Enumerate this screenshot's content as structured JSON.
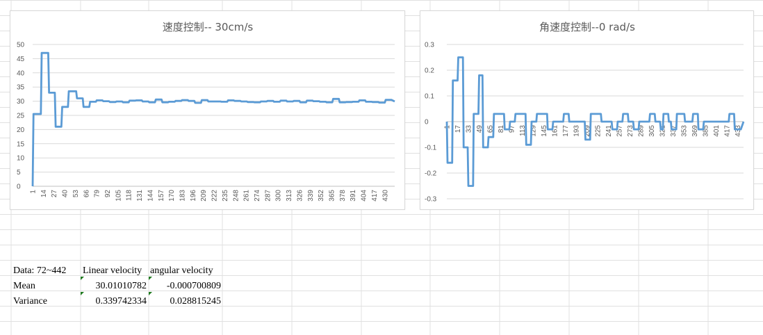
{
  "chart_data": [
    {
      "type": "line",
      "title": "速度控制-- 30cm/s",
      "xlabel": "",
      "ylabel": "",
      "ylim": [
        0,
        50
      ],
      "yticks": [
        0,
        5,
        10,
        15,
        20,
        25,
        30,
        35,
        40,
        45,
        50
      ],
      "xticks": [
        "1",
        "14",
        "27",
        "40",
        "53",
        "66",
        "79",
        "92",
        "105",
        "118",
        "131",
        "144",
        "157",
        "170",
        "183",
        "196",
        "209",
        "222",
        "235",
        "248",
        "261",
        "274",
        "287",
        "300",
        "313",
        "326",
        "339",
        "352",
        "365",
        "378",
        "391",
        "404",
        "417",
        "430"
      ],
      "x_range": [
        1,
        442
      ],
      "grid": true,
      "legend": "none",
      "color": "#5b9bd5",
      "series": [
        {
          "values": [
            [
              1,
              0
            ],
            [
              2,
              25.5
            ],
            [
              11,
              25.5
            ],
            [
              12,
              47
            ],
            [
              20,
              47
            ],
            [
              21,
              33
            ],
            [
              28,
              33
            ],
            [
              29,
              21
            ],
            [
              36,
              21
            ],
            [
              37,
              28
            ],
            [
              44,
              28
            ],
            [
              45,
              33.5
            ],
            [
              54,
              33.5
            ],
            [
              55,
              31
            ],
            [
              62,
              31
            ],
            [
              63,
              28
            ],
            [
              70,
              28
            ],
            [
              71,
              29.8
            ],
            [
              78,
              29.8
            ],
            [
              79,
              30.3
            ],
            [
              86,
              30.3
            ],
            [
              87,
              30
            ],
            [
              94,
              30
            ],
            [
              95,
              29.7
            ],
            [
              102,
              29.7
            ],
            [
              103,
              29.9
            ],
            [
              110,
              29.9
            ],
            [
              111,
              29.6
            ],
            [
              118,
              29.6
            ],
            [
              119,
              30.2
            ],
            [
              126,
              30.2
            ],
            [
              127,
              30.3
            ],
            [
              134,
              30.3
            ],
            [
              135,
              29.9
            ],
            [
              142,
              29.9
            ],
            [
              143,
              29.6
            ],
            [
              150,
              29.6
            ],
            [
              151,
              30.6
            ],
            [
              158,
              30.6
            ],
            [
              159,
              29.6
            ],
            [
              166,
              29.6
            ],
            [
              167,
              29.8
            ],
            [
              174,
              29.8
            ],
            [
              175,
              30.1
            ],
            [
              182,
              30.1
            ],
            [
              183,
              30.4
            ],
            [
              190,
              30.4
            ],
            [
              191,
              30.1
            ],
            [
              198,
              30.1
            ],
            [
              199,
              29.4
            ],
            [
              206,
              29.4
            ],
            [
              207,
              30.4
            ],
            [
              214,
              30.4
            ],
            [
              215,
              29.9
            ],
            [
              222,
              29.9
            ],
            [
              223,
              29.9
            ],
            [
              230,
              29.9
            ],
            [
              231,
              29.8
            ],
            [
              238,
              29.8
            ],
            [
              239,
              30.3
            ],
            [
              246,
              30.3
            ],
            [
              247,
              30.1
            ],
            [
              254,
              30.1
            ],
            [
              255,
              29.9
            ],
            [
              262,
              29.9
            ],
            [
              263,
              29.7
            ],
            [
              270,
              29.7
            ],
            [
              271,
              29.6
            ],
            [
              278,
              29.6
            ],
            [
              279,
              29.9
            ],
            [
              286,
              29.9
            ],
            [
              287,
              30.1
            ],
            [
              294,
              30.1
            ],
            [
              295,
              29.8
            ],
            [
              302,
              29.8
            ],
            [
              303,
              30.2
            ],
            [
              310,
              30.2
            ],
            [
              311,
              29.9
            ],
            [
              318,
              29.9
            ],
            [
              319,
              30.1
            ],
            [
              326,
              30.1
            ],
            [
              327,
              29.6
            ],
            [
              334,
              29.6
            ],
            [
              335,
              30.2
            ],
            [
              342,
              30.2
            ],
            [
              343,
              30
            ],
            [
              350,
              30
            ],
            [
              351,
              29.8
            ],
            [
              358,
              29.8
            ],
            [
              359,
              29.6
            ],
            [
              366,
              29.6
            ],
            [
              367,
              30.8
            ],
            [
              374,
              30.8
            ],
            [
              375,
              29.6
            ],
            [
              382,
              29.6
            ],
            [
              383,
              29.7
            ],
            [
              390,
              29.7
            ],
            [
              391,
              29.8
            ],
            [
              398,
              29.8
            ],
            [
              399,
              30.3
            ],
            [
              406,
              30.3
            ],
            [
              407,
              29.8
            ],
            [
              414,
              29.8
            ],
            [
              415,
              29.7
            ],
            [
              422,
              29.7
            ],
            [
              423,
              29.5
            ],
            [
              430,
              29.5
            ],
            [
              431,
              30.5
            ],
            [
              438,
              30.5
            ],
            [
              442,
              29.9
            ]
          ]
        }
      ]
    },
    {
      "type": "line",
      "title": "角速度控制--0 rad/s",
      "xlabel": "",
      "ylabel": "",
      "ylim": [
        -0.3,
        0.3
      ],
      "yticks": [
        -0.3,
        -0.2,
        -0.1,
        0,
        0.1,
        0.2,
        0.3
      ],
      "ytick_labels": [
        "-0.3",
        "-0.2",
        "-0.1",
        "0",
        "0.1",
        "0.2",
        "0.3"
      ],
      "xticks": [
        "1",
        "17",
        "33",
        "49",
        "65",
        "81",
        "97",
        "113",
        "129",
        "145",
        "161",
        "177",
        "193",
        "209",
        "225",
        "241",
        "257",
        "273",
        "289",
        "305",
        "321",
        "337",
        "353",
        "369",
        "385",
        "401",
        "417",
        "433"
      ],
      "x_range": [
        1,
        442
      ],
      "grid": true,
      "legend": "none",
      "color": "#5b9bd5",
      "series": [
        {
          "values": [
            [
              1,
              0
            ],
            [
              2,
              -0.16
            ],
            [
              9,
              -0.16
            ],
            [
              10,
              0.16
            ],
            [
              17,
              0.16
            ],
            [
              18,
              0.25
            ],
            [
              25,
              0.25
            ],
            [
              26,
              -0.1
            ],
            [
              32,
              -0.1
            ],
            [
              33,
              -0.25
            ],
            [
              40,
              -0.25
            ],
            [
              41,
              0.03
            ],
            [
              48,
              0.03
            ],
            [
              49,
              0.18
            ],
            [
              54,
              0.18
            ],
            [
              55,
              -0.1
            ],
            [
              62,
              -0.1
            ],
            [
              63,
              -0.06
            ],
            [
              70,
              -0.06
            ],
            [
              71,
              0.03
            ],
            [
              86,
              0.03
            ],
            [
              87,
              -0.03
            ],
            [
              94,
              -0.03
            ],
            [
              95,
              0
            ],
            [
              102,
              0
            ],
            [
              103,
              0.03
            ],
            [
              118,
              0.03
            ],
            [
              119,
              -0.09
            ],
            [
              126,
              -0.09
            ],
            [
              127,
              0
            ],
            [
              134,
              0
            ],
            [
              135,
              0.03
            ],
            [
              150,
              0.03
            ],
            [
              151,
              -0.03
            ],
            [
              158,
              -0.03
            ],
            [
              159,
              0
            ],
            [
              174,
              0
            ],
            [
              175,
              0.03
            ],
            [
              182,
              0.03
            ],
            [
              183,
              0
            ],
            [
              206,
              0
            ],
            [
              207,
              -0.07
            ],
            [
              214,
              -0.07
            ],
            [
              215,
              0.03
            ],
            [
              230,
              0.03
            ],
            [
              231,
              0
            ],
            [
              246,
              0
            ],
            [
              247,
              -0.03
            ],
            [
              254,
              -0.03
            ],
            [
              255,
              0
            ],
            [
              262,
              0
            ],
            [
              263,
              0.03
            ],
            [
              270,
              0.03
            ],
            [
              271,
              0
            ],
            [
              278,
              0
            ],
            [
              279,
              -0.03
            ],
            [
              286,
              -0.03
            ],
            [
              287,
              0
            ],
            [
              302,
              0
            ],
            [
              303,
              0.03
            ],
            [
              310,
              0.03
            ],
            [
              311,
              0
            ],
            [
              318,
              0
            ],
            [
              319,
              -0.03
            ],
            [
              322,
              -0.03
            ],
            [
              323,
              0.03
            ],
            [
              330,
              0.03
            ],
            [
              331,
              0
            ],
            [
              334,
              0
            ],
            [
              335,
              -0.03
            ],
            [
              342,
              -0.03
            ],
            [
              343,
              0.03
            ],
            [
              354,
              0.03
            ],
            [
              355,
              0
            ],
            [
              366,
              0
            ],
            [
              367,
              0.03
            ],
            [
              374,
              0.03
            ],
            [
              375,
              -0.03
            ],
            [
              382,
              -0.03
            ],
            [
              383,
              0
            ],
            [
              394,
              0
            ],
            [
              395,
              0
            ],
            [
              420,
              0
            ],
            [
              421,
              0.03
            ],
            [
              428,
              0.03
            ],
            [
              429,
              -0.03
            ],
            [
              438,
              -0.03
            ],
            [
              442,
              0
            ]
          ]
        }
      ]
    }
  ],
  "table": {
    "header": [
      "Data: 72~442",
      "Linear velocity",
      "angular velocity"
    ],
    "rows": [
      [
        "Mean",
        "30.01010782",
        "-0.000700809"
      ],
      [
        "Variance",
        "0.339742334",
        "0.028815245"
      ]
    ]
  }
}
